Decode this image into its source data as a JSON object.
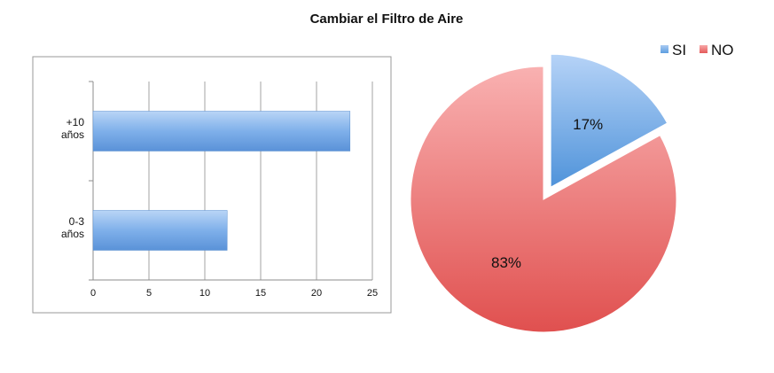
{
  "title": "Cambiar el Filtro de Aire",
  "chart_data": [
    {
      "type": "bar",
      "orientation": "horizontal",
      "categories": [
        [
          "0-3",
          "años"
        ],
        [
          "+10",
          "años"
        ]
      ],
      "values": [
        12,
        23
      ],
      "xlim": [
        0,
        25
      ],
      "xticks": [
        0,
        5,
        10,
        15,
        20,
        25
      ],
      "grid": true,
      "color": "#6aa4e2"
    },
    {
      "type": "pie",
      "labels": [
        "SI",
        "NO"
      ],
      "values": [
        17,
        83
      ],
      "data_labels": [
        "17%",
        "83%"
      ],
      "colors": [
        "#5d9ee0",
        "#e45a5a"
      ],
      "exploded": "SI",
      "legend": "top-right"
    }
  ]
}
